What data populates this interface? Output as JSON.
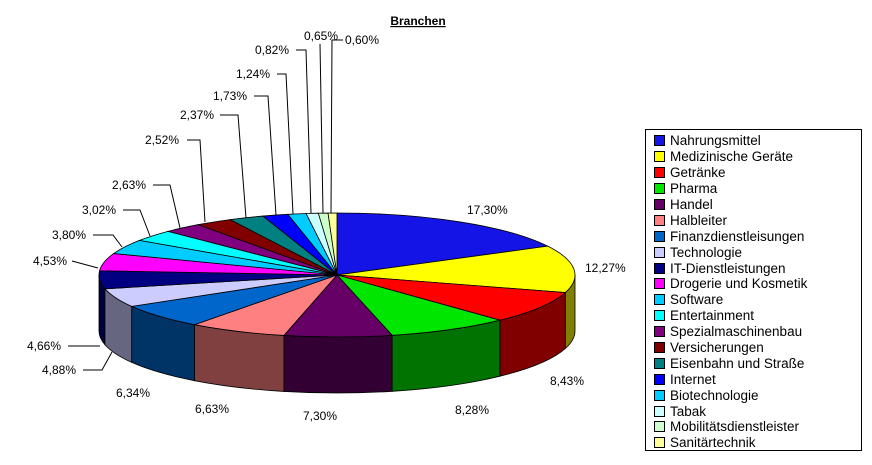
{
  "chart_data": {
    "type": "pie",
    "title": "Branchen",
    "legend_position": "right",
    "slices": [
      {
        "name": "Nahrungsmittel",
        "value": 17.3,
        "label": "17,30%",
        "color": "#1414e6"
      },
      {
        "name": "Medizinische Geräte",
        "value": 12.27,
        "label": "12,27%",
        "color": "#ffff00"
      },
      {
        "name": "Getränke",
        "value": 8.43,
        "label": "8,43%",
        "color": "#ff0000"
      },
      {
        "name": "Pharma",
        "value": 8.28,
        "label": "8,28%",
        "color": "#00e600"
      },
      {
        "name": "Handel",
        "value": 7.3,
        "label": "7,30%",
        "color": "#660066"
      },
      {
        "name": "Halbleiter",
        "value": 6.63,
        "label": "6,63%",
        "color": "#ff8080"
      },
      {
        "name": "Finanzdienstleisungen",
        "value": 6.34,
        "label": "6,34%",
        "color": "#0066cc"
      },
      {
        "name": "Technologie",
        "value": 4.88,
        "label": "4,88%",
        "color": "#ccccff"
      },
      {
        "name": "IT-Dienstleistungen",
        "value": 4.66,
        "label": "4,66%",
        "color": "#000080"
      },
      {
        "name": "Drogerie und Kosmetik",
        "value": 4.53,
        "label": "4,53%",
        "color": "#ff00ff"
      },
      {
        "name": "Software",
        "value": 3.8,
        "label": "3,80%",
        "color": "#00ccff"
      },
      {
        "name": "Entertainment",
        "value": 3.02,
        "label": "3,02%",
        "color": "#00ffff"
      },
      {
        "name": "Spezialmaschinenbau",
        "value": 2.63,
        "label": "2,63%",
        "color": "#800080"
      },
      {
        "name": "Versicherungen",
        "value": 2.52,
        "label": "2,52%",
        "color": "#800000"
      },
      {
        "name": "Eisenbahn und Straße",
        "value": 2.37,
        "label": "2,37%",
        "color": "#008080"
      },
      {
        "name": "Internet",
        "value": 1.73,
        "label": "1,73%",
        "color": "#0000ff"
      },
      {
        "name": "Biotechnologie",
        "value": 1.24,
        "label": "1,24%",
        "color": "#00ccff"
      },
      {
        "name": "Tabak",
        "value": 0.82,
        "label": "0,82%",
        "color": "#ccffff"
      },
      {
        "name": "Mobilitätsdienstleister",
        "value": 0.65,
        "label": "0,65%",
        "color": "#ccffcc"
      },
      {
        "name": "Sanitärtechnik",
        "value": 0.6,
        "label": "0,60%",
        "color": "#ffff99"
      }
    ]
  }
}
